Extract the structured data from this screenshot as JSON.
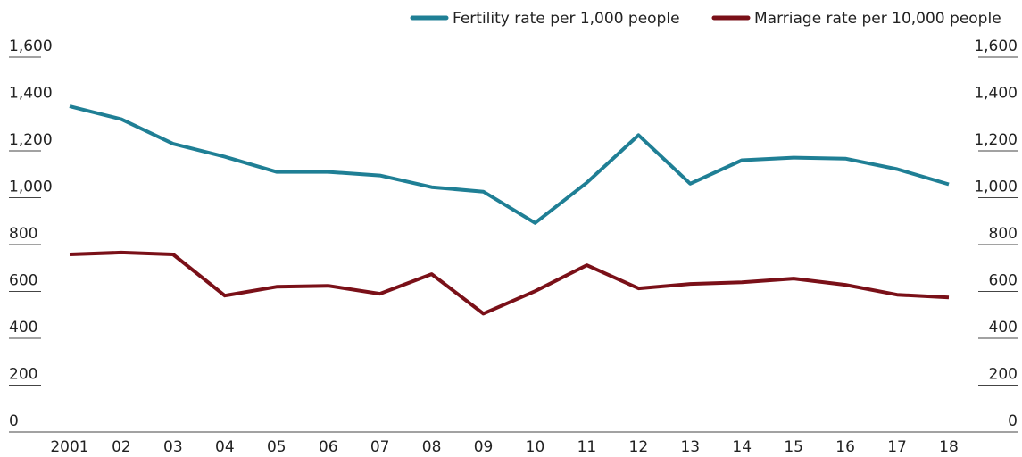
{
  "chart_data": {
    "type": "line",
    "categories": [
      "2001",
      "02",
      "03",
      "04",
      "05",
      "06",
      "07",
      "08",
      "09",
      "10",
      "11",
      "12",
      "13",
      "14",
      "15",
      "16",
      "17",
      "18"
    ],
    "series": [
      {
        "name": "Fertility rate per 1,000 people",
        "color": "#1f7f95",
        "values": [
          1390,
          1335,
          1230,
          1175,
          1110,
          1110,
          1095,
          1045,
          1026,
          892,
          1064,
          1267,
          1060,
          1160,
          1171,
          1167,
          1122,
          1057
        ]
      },
      {
        "name": "Marriage rate per 10,000 people",
        "color": "#7a1018",
        "values": [
          758,
          766,
          758,
          582,
          620,
          624,
          590,
          674,
          505,
          601,
          712,
          613,
          632,
          639,
          655,
          628,
          586,
          574
        ]
      }
    ],
    "ylim": [
      0,
      1600
    ],
    "yticks": [
      0,
      200,
      400,
      600,
      800,
      {
        "value": 1000,
        "label": "1,000"
      },
      {
        "value": 1200,
        "label": "1,200"
      },
      {
        "value": 1400,
        "label": "1,400"
      },
      {
        "value": 1600,
        "label": "1,600"
      }
    ],
    "y2lim": [
      0,
      1600
    ],
    "y2ticks": [
      0,
      200,
      400,
      600,
      800,
      {
        "value": 1000,
        "label": "1,000"
      },
      {
        "value": 1200,
        "label": "1,200"
      },
      {
        "value": 1400,
        "label": "1,400"
      },
      {
        "value": 1600,
        "label": "1,600"
      }
    ],
    "legend": "top-right"
  }
}
